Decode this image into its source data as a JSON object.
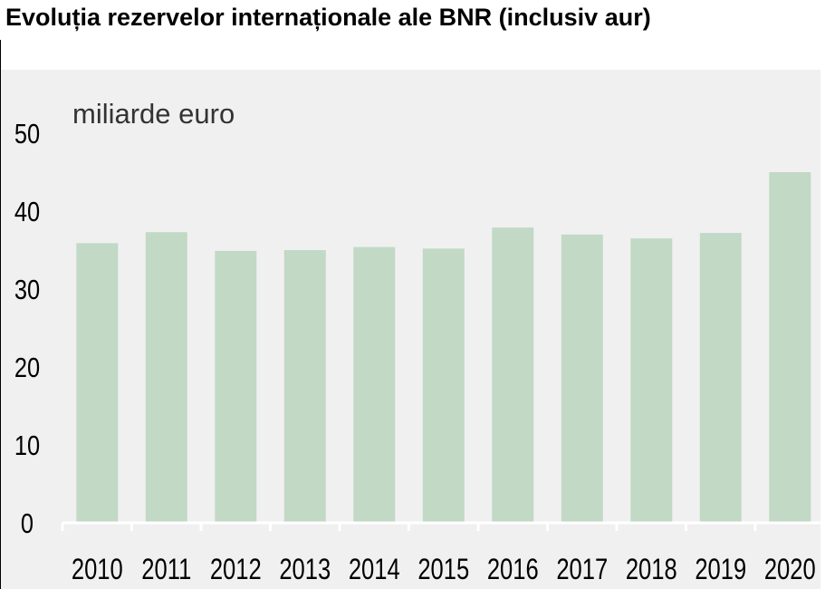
{
  "title": "Evoluția rezervelor internaționale ale BNR (inclusiv aur)",
  "colors": {
    "bar": "#c2d9c5",
    "axis": "#ffffff",
    "background": "#f0f0f1",
    "text": "#000000"
  },
  "chart_data": {
    "type": "bar",
    "title": "Evoluția rezervelor internaționale ale BNR (inclusiv aur)",
    "unit_label": "miliarde euro",
    "xlabel": "",
    "ylabel": "",
    "categories": [
      "2010",
      "2011",
      "2012",
      "2013",
      "2014",
      "2015",
      "2016",
      "2017",
      "2018",
      "2019",
      "2020"
    ],
    "values": [
      35.9,
      37.3,
      34.9,
      35.0,
      35.4,
      35.2,
      37.9,
      37.0,
      36.5,
      37.2,
      45.0
    ],
    "ylim": [
      0,
      50
    ],
    "yticks": [
      "0",
      "10",
      "20",
      "30",
      "40",
      "50"
    ],
    "grid": false,
    "legend": "none"
  }
}
